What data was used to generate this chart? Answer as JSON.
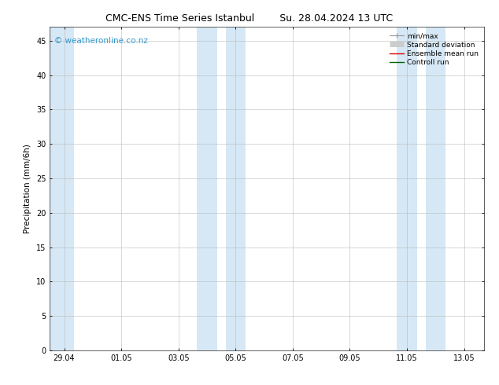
{
  "title_left": "CMC-ENS Time Series Istanbul",
  "title_right": "Su. 28.04.2024 13 UTC",
  "ylabel": "Precipitation (mm/6h)",
  "ylim": [
    0,
    47
  ],
  "yticks": [
    0,
    5,
    10,
    15,
    20,
    25,
    30,
    35,
    40,
    45
  ],
  "xtick_labels": [
    "29.04",
    "01.05",
    "03.05",
    "05.05",
    "07.05",
    "09.05",
    "11.05",
    "13.05"
  ],
  "xtick_positions": [
    0,
    2,
    4,
    6,
    8,
    10,
    12,
    14
  ],
  "xlim": [
    -0.5,
    14.7
  ],
  "background_color": "#ffffff",
  "plot_bg_color": "#ffffff",
  "shaded_color": "#d6e8f5",
  "shaded_regions": [
    {
      "xmin": -0.5,
      "xmax": 0.35
    },
    {
      "xmin": 4.65,
      "xmax": 5.35
    },
    {
      "xmin": 5.65,
      "xmax": 6.35
    },
    {
      "xmin": 11.65,
      "xmax": 12.35
    },
    {
      "xmin": 12.65,
      "xmax": 13.35
    }
  ],
  "legend_items": [
    {
      "label": "min/max",
      "color": "#aaaaaa",
      "lw": 1.0
    },
    {
      "label": "Standard deviation",
      "color": "#cccccc",
      "lw": 5
    },
    {
      "label": "Ensemble mean run",
      "color": "#dd0000",
      "lw": 1.0
    },
    {
      "label": "Controll run",
      "color": "#006600",
      "lw": 1.0
    }
  ],
  "watermark_text": "© weatheronline.co.nz",
  "watermark_color": "#3399cc",
  "watermark_fontsize": 7.5,
  "title_fontsize": 9,
  "ylabel_fontsize": 7.5,
  "tick_fontsize": 7,
  "legend_fontsize": 6.5,
  "grid_color": "#bbbbbb",
  "grid_lw": 0.4
}
